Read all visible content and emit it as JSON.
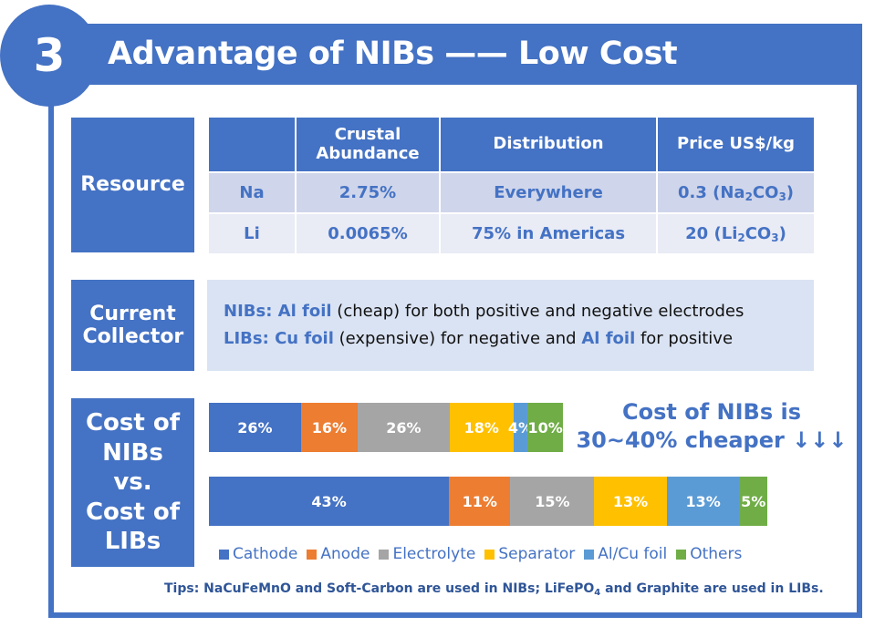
{
  "header": {
    "number": "3",
    "title": "Advantage of NIBs —— Low Cost"
  },
  "resource": {
    "label": "Resource",
    "columns": [
      "",
      "Crustal Abundance",
      "Distribution",
      "Price US$/kg"
    ],
    "rows": [
      {
        "element": "Na",
        "abundance": "2.75%",
        "distribution": "Everywhere",
        "price_value": "0.3",
        "price_compound_parts": [
          "Na",
          "2",
          "CO",
          "3"
        ]
      },
      {
        "element": "Li",
        "abundance": "0.0065%",
        "distribution": "75% in Americas",
        "price_value": "20",
        "price_compound_parts": [
          "Li",
          "2",
          "CO",
          "3"
        ]
      }
    ]
  },
  "collector": {
    "label": "Current Collector",
    "lines": [
      {
        "prefix": "NIBs: Al foil",
        "rest": " (cheap) for both positive and negative electrodes"
      },
      {
        "prefix": "LIBs: Cu foil",
        "middle": " (expensive) for negative and ",
        "highlight": "Al foil",
        "suffix": " for positive"
      }
    ]
  },
  "cost": {
    "label_lines": [
      "Cost of",
      "NIBs",
      "vs.",
      "Cost of",
      "LIBs"
    ],
    "callout_lines": [
      "Cost of NIBs is",
      "30~40% cheaper ↓↓↓"
    ]
  },
  "chart_data": {
    "type": "bar",
    "orientation": "horizontal-stacked",
    "categories": [
      "NIBs",
      "LIBs"
    ],
    "relative_total_cost": {
      "NIBs": 0.634,
      "LIBs": 1.0
    },
    "series": [
      {
        "name": "Cathode",
        "color": "#4472C4",
        "values": [
          26,
          43
        ]
      },
      {
        "name": "Anode",
        "color": "#ED7D31",
        "values": [
          16,
          11
        ]
      },
      {
        "name": "Electrolyte",
        "color": "#A5A5A5",
        "values": [
          26,
          15
        ]
      },
      {
        "name": "Separator",
        "color": "#FFC000",
        "values": [
          18,
          13
        ]
      },
      {
        "name": "Al/Cu foil",
        "color": "#5B9BD5",
        "values": [
          4,
          13
        ]
      },
      {
        "name": "Others",
        "color": "#70AD47",
        "values": [
          10,
          5
        ]
      }
    ],
    "value_suffix": "%",
    "legend": "bottom"
  },
  "tips": {
    "before": "Tips: NaCuFeMnO and Soft-Carbon are used in NIBs; LiFePO",
    "sub": "4",
    "after": " and Graphite are used in LIBs."
  }
}
